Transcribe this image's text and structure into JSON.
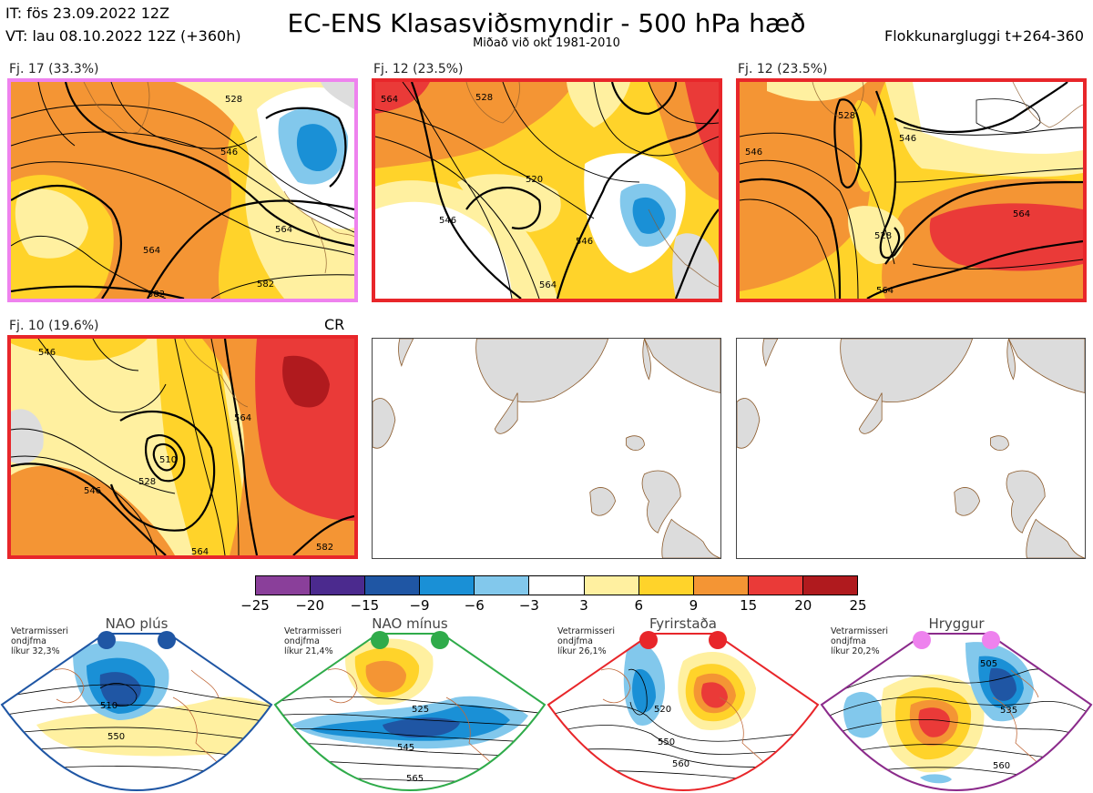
{
  "header": {
    "it_line": "IT: fös 23.09.2022 12Z",
    "vt_line": "VT: lau 08.10.2022 12Z  (+360h)",
    "title": "EC-ENS Klasasviðsmyndir - 500 hPa hæð",
    "subtitle": "Miðað við okt 1981-2010",
    "window_label": "Flokkunargluggi t+264-360"
  },
  "clusters": [
    {
      "label": "Fj. 17 (33.3%)",
      "frame_color": "#ee82ee",
      "contour_labels": [
        "528",
        "546",
        "564",
        "564",
        "582",
        "582"
      ]
    },
    {
      "label": "Fj. 12 (23.5%)",
      "frame_color": "#e8262a",
      "contour_labels": [
        "564",
        "528",
        "546",
        "520",
        "546",
        "564"
      ]
    },
    {
      "label": "Fj. 12 (23.5%)",
      "frame_color": "#e8262a",
      "contour_labels": [
        "528",
        "546",
        "546",
        "564",
        "528",
        "564"
      ]
    },
    {
      "label": "Fj. 10 (19.6%)",
      "frame_color": "#e8262a",
      "contour_labels": [
        "546",
        "510",
        "528",
        "564",
        "564",
        "546",
        "582"
      ]
    }
  ],
  "cr_label": "CR",
  "colorbar": {
    "colors": [
      "#8a3f9a",
      "#4b2a8e",
      "#1f56a4",
      "#1a90d6",
      "#82c8ec",
      "#ffffff",
      "#fff0a0",
      "#ffd32a",
      "#f49534",
      "#ea3a38",
      "#b01a1e"
    ],
    "ticks": [
      "−25",
      "−20",
      "−15",
      "−9",
      "−6",
      "−3",
      "3",
      "6",
      "9",
      "15",
      "20",
      "25"
    ]
  },
  "regimes": [
    {
      "title": "NAO plús",
      "note": [
        "Vetrarmisseri",
        "ondjfma",
        "líkur 32,3%"
      ],
      "frame_color": "#1f56a4",
      "dot_color": "#1f56a4",
      "contour_labels": [
        "510",
        "550"
      ]
    },
    {
      "title": "NAO mínus",
      "note": [
        "Vetrarmisseri",
        "ondjfma",
        "líkur 21,4%"
      ],
      "frame_color": "#2fab4a",
      "dot_color": "#2fab4a",
      "contour_labels": [
        "525",
        "545",
        "565"
      ]
    },
    {
      "title": "Fyrirstaða",
      "note": [
        "Vetrarmisseri",
        "ondjfma",
        "líkur 26,1%"
      ],
      "frame_color": "#e8262a",
      "dot_color": "#e8262a",
      "contour_labels": [
        "520",
        "550",
        "560"
      ]
    },
    {
      "title": "Hryggur",
      "note": [
        "Vetrarmisseri",
        "ondjfma",
        "líkur 20,2%"
      ],
      "frame_color": "#8b2b8b",
      "dot_color": "#ee82ee",
      "contour_labels": [
        "505",
        "535",
        "560"
      ]
    }
  ]
}
